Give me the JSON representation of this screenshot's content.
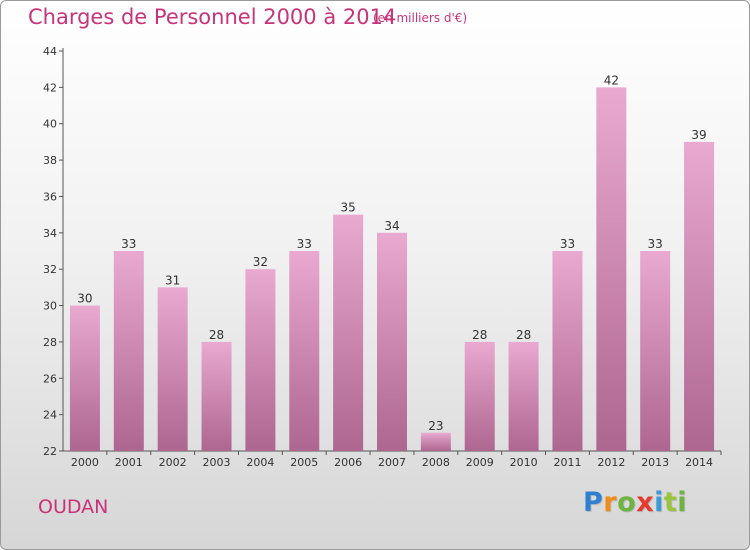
{
  "header": {
    "title": "Charges de Personnel 2000 à 2014",
    "subtitle": "(en milliers d'€)"
  },
  "footer": {
    "city": "OUDAN",
    "logo_text": [
      "P",
      "r",
      "o",
      "x",
      "i",
      "t",
      "i"
    ]
  },
  "colors": {
    "title": "#c8337a",
    "bar_top": "#e9a9d0",
    "bar_bottom": "#ad6690",
    "axis": "#555555"
  },
  "chart_data": {
    "type": "bar",
    "categories": [
      "2000",
      "2001",
      "2002",
      "2003",
      "2004",
      "2005",
      "2006",
      "2007",
      "2008",
      "2009",
      "2010",
      "2011",
      "2012",
      "2013",
      "2014"
    ],
    "values": [
      30,
      33,
      31,
      28,
      32,
      33,
      35,
      34,
      23,
      28,
      28,
      33,
      42,
      33,
      39
    ],
    "ylim": [
      22,
      44
    ],
    "yticks": [
      22,
      24,
      26,
      28,
      30,
      32,
      34,
      36,
      38,
      40,
      42,
      44
    ],
    "grid": false,
    "legend": "none"
  }
}
